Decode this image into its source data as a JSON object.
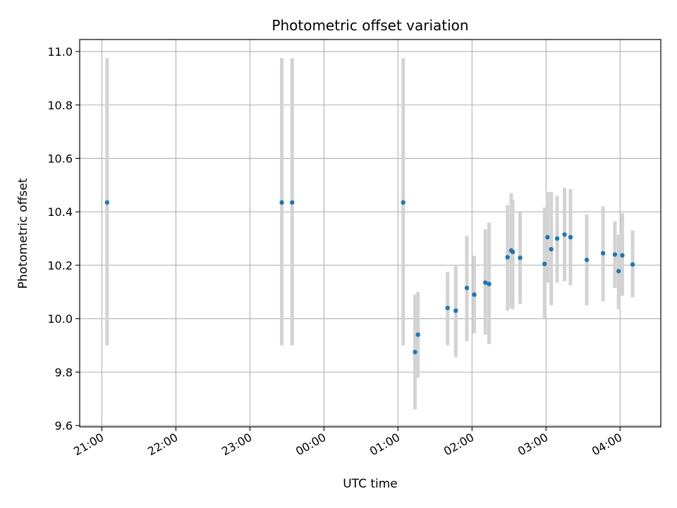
{
  "chart_data": {
    "type": "scatter",
    "title": "Photometric offset variation",
    "xlabel": "UTC time",
    "ylabel": "Photometric offset",
    "x_unit": "hours",
    "xlim": [
      20.7,
      28.55
    ],
    "ylim": [
      9.595,
      11.045
    ],
    "grid": true,
    "x_ticks": [
      {
        "value": 21,
        "label": "21:00"
      },
      {
        "value": 22,
        "label": "22:00"
      },
      {
        "value": 23,
        "label": "23:00"
      },
      {
        "value": 24,
        "label": "00:00"
      },
      {
        "value": 25,
        "label": "01:00"
      },
      {
        "value": 26,
        "label": "02:00"
      },
      {
        "value": 27,
        "label": "03:00"
      },
      {
        "value": 28,
        "label": "04:00"
      }
    ],
    "y_ticks": [
      {
        "value": 9.6,
        "label": "9.6"
      },
      {
        "value": 9.8,
        "label": "9.8"
      },
      {
        "value": 10.0,
        "label": "10.0"
      },
      {
        "value": 10.2,
        "label": "10.2"
      },
      {
        "value": 10.4,
        "label": "10.4"
      },
      {
        "value": 10.6,
        "label": "10.6"
      },
      {
        "value": 10.8,
        "label": "10.8"
      },
      {
        "value": 11.0,
        "label": "11.0"
      }
    ],
    "point_color": "#1f77b4",
    "errorbar_color": "#d3d3d3",
    "points": [
      {
        "x": 21.07,
        "y": 10.435,
        "lo": 9.9,
        "hi": 10.975
      },
      {
        "x": 23.43,
        "y": 10.435,
        "lo": 9.9,
        "hi": 10.975
      },
      {
        "x": 23.57,
        "y": 10.435,
        "lo": 9.9,
        "hi": 10.975
      },
      {
        "x": 25.07,
        "y": 10.435,
        "lo": 9.9,
        "hi": 10.975
      },
      {
        "x": 25.23,
        "y": 9.875,
        "lo": 9.66,
        "hi": 10.09
      },
      {
        "x": 25.27,
        "y": 9.94,
        "lo": 9.78,
        "hi": 10.1
      },
      {
        "x": 25.67,
        "y": 10.04,
        "lo": 9.9,
        "hi": 10.175
      },
      {
        "x": 25.78,
        "y": 10.03,
        "lo": 9.855,
        "hi": 10.2
      },
      {
        "x": 25.93,
        "y": 10.115,
        "lo": 9.915,
        "hi": 10.31
      },
      {
        "x": 26.03,
        "y": 10.09,
        "lo": 9.945,
        "hi": 10.235
      },
      {
        "x": 26.18,
        "y": 10.135,
        "lo": 9.94,
        "hi": 10.335
      },
      {
        "x": 26.23,
        "y": 10.13,
        "lo": 9.905,
        "hi": 10.36
      },
      {
        "x": 26.48,
        "y": 10.23,
        "lo": 10.03,
        "hi": 10.425
      },
      {
        "x": 26.53,
        "y": 10.255,
        "lo": 10.04,
        "hi": 10.47
      },
      {
        "x": 26.55,
        "y": 10.25,
        "lo": 10.035,
        "hi": 10.445
      },
      {
        "x": 26.65,
        "y": 10.228,
        "lo": 10.055,
        "hi": 10.4
      },
      {
        "x": 26.98,
        "y": 10.205,
        "lo": 10.0,
        "hi": 10.415
      },
      {
        "x": 27.02,
        "y": 10.305,
        "lo": 10.135,
        "hi": 10.475
      },
      {
        "x": 27.07,
        "y": 10.26,
        "lo": 10.05,
        "hi": 10.475
      },
      {
        "x": 27.15,
        "y": 10.3,
        "lo": 10.135,
        "hi": 10.46
      },
      {
        "x": 27.25,
        "y": 10.315,
        "lo": 10.14,
        "hi": 10.49
      },
      {
        "x": 27.33,
        "y": 10.305,
        "lo": 10.125,
        "hi": 10.485
      },
      {
        "x": 27.55,
        "y": 10.22,
        "lo": 10.05,
        "hi": 10.39
      },
      {
        "x": 27.77,
        "y": 10.245,
        "lo": 10.065,
        "hi": 10.42
      },
      {
        "x": 27.93,
        "y": 10.24,
        "lo": 10.115,
        "hi": 10.365
      },
      {
        "x": 27.98,
        "y": 10.178,
        "lo": 10.035,
        "hi": 10.315
      },
      {
        "x": 28.03,
        "y": 10.237,
        "lo": 10.085,
        "hi": 10.395
      },
      {
        "x": 28.17,
        "y": 10.203,
        "lo": 10.08,
        "hi": 10.33
      }
    ]
  }
}
